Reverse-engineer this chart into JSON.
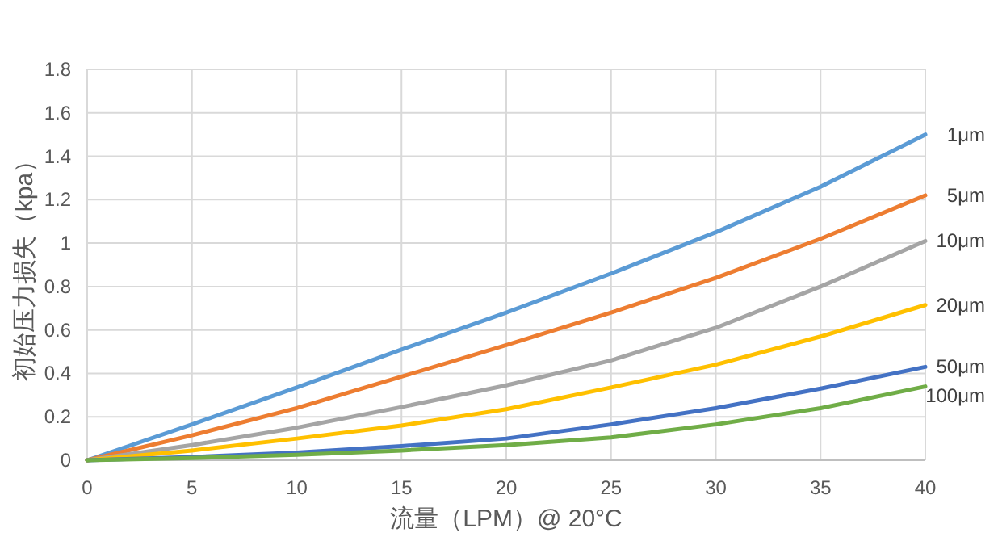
{
  "chart_data": {
    "type": "line",
    "xlabel": "流量（LPM）@ 20°C",
    "ylabel": "初始压力损失（kpa）",
    "x": [
      0,
      5,
      10,
      15,
      20,
      25,
      30,
      35,
      40
    ],
    "xlim": [
      0,
      40
    ],
    "xticks": [
      0,
      5,
      10,
      15,
      20,
      25,
      30,
      35,
      40
    ],
    "ylim": [
      0,
      1.8
    ],
    "yticks": [
      0,
      0.2,
      0.4,
      0.6,
      0.8,
      1,
      1.2,
      1.4,
      1.6,
      1.8
    ],
    "grid": true,
    "marker": "none",
    "line_style": "solid",
    "series": [
      {
        "name": "1μm",
        "color": "#5b9bd5",
        "values": [
          0,
          0.165,
          0.335,
          0.51,
          0.68,
          0.86,
          1.05,
          1.26,
          1.5
        ]
      },
      {
        "name": "5μm",
        "color": "#ed7d31",
        "values": [
          0,
          0.115,
          0.24,
          0.385,
          0.53,
          0.68,
          0.84,
          1.02,
          1.22
        ]
      },
      {
        "name": "10μm",
        "color": "#a5a5a5",
        "values": [
          0,
          0.07,
          0.15,
          0.245,
          0.345,
          0.46,
          0.61,
          0.8,
          1.01
        ]
      },
      {
        "name": "20μm",
        "color": "#ffc000",
        "values": [
          0,
          0.045,
          0.1,
          0.16,
          0.235,
          0.335,
          0.44,
          0.57,
          0.715
        ]
      },
      {
        "name": "50μm",
        "color": "#4472c4",
        "values": [
          0,
          0.015,
          0.035,
          0.065,
          0.1,
          0.165,
          0.24,
          0.33,
          0.43
        ]
      },
      {
        "name": "100μm",
        "color": "#70ad47",
        "values": [
          0,
          0.01,
          0.025,
          0.045,
          0.07,
          0.105,
          0.165,
          0.24,
          0.34
        ]
      }
    ]
  }
}
